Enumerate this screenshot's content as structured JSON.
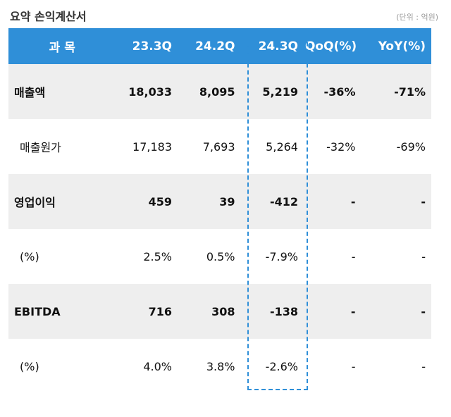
{
  "title": "요약 손익계산서",
  "unit": "(단위 : 억원)",
  "headers": [
    "과 목",
    "23.3Q",
    "24.2Q",
    "24.3Q",
    "QoQ(%)",
    "YoY(%)"
  ],
  "highlighted_column": "24.3Q",
  "rows": [
    {
      "label": "매출액",
      "bold": true,
      "values": [
        "18,033",
        "8,095",
        "5,219",
        "-36%",
        "-71%"
      ]
    },
    {
      "label": "매출원가",
      "bold": false,
      "values": [
        "17,183",
        "7,693",
        "5,264",
        "-32%",
        "-69%"
      ]
    },
    {
      "label": "영업이익",
      "bold": true,
      "values": [
        "459",
        "39",
        "-412",
        "-",
        "-"
      ]
    },
    {
      "label": "(%)",
      "bold": false,
      "values": [
        "2.5%",
        "0.5%",
        "-7.9%",
        "-",
        "-"
      ]
    },
    {
      "label": "EBITDA",
      "bold": true,
      "values": [
        "716",
        "308",
        "-138",
        "-",
        "-"
      ]
    },
    {
      "label": "(%)",
      "bold": false,
      "values": [
        "4.0%",
        "3.8%",
        "-2.6%",
        "-",
        "-"
      ]
    }
  ],
  "colors": {
    "header_bg": "#2f8fd8",
    "stripe_bg": "#eeeeee"
  }
}
